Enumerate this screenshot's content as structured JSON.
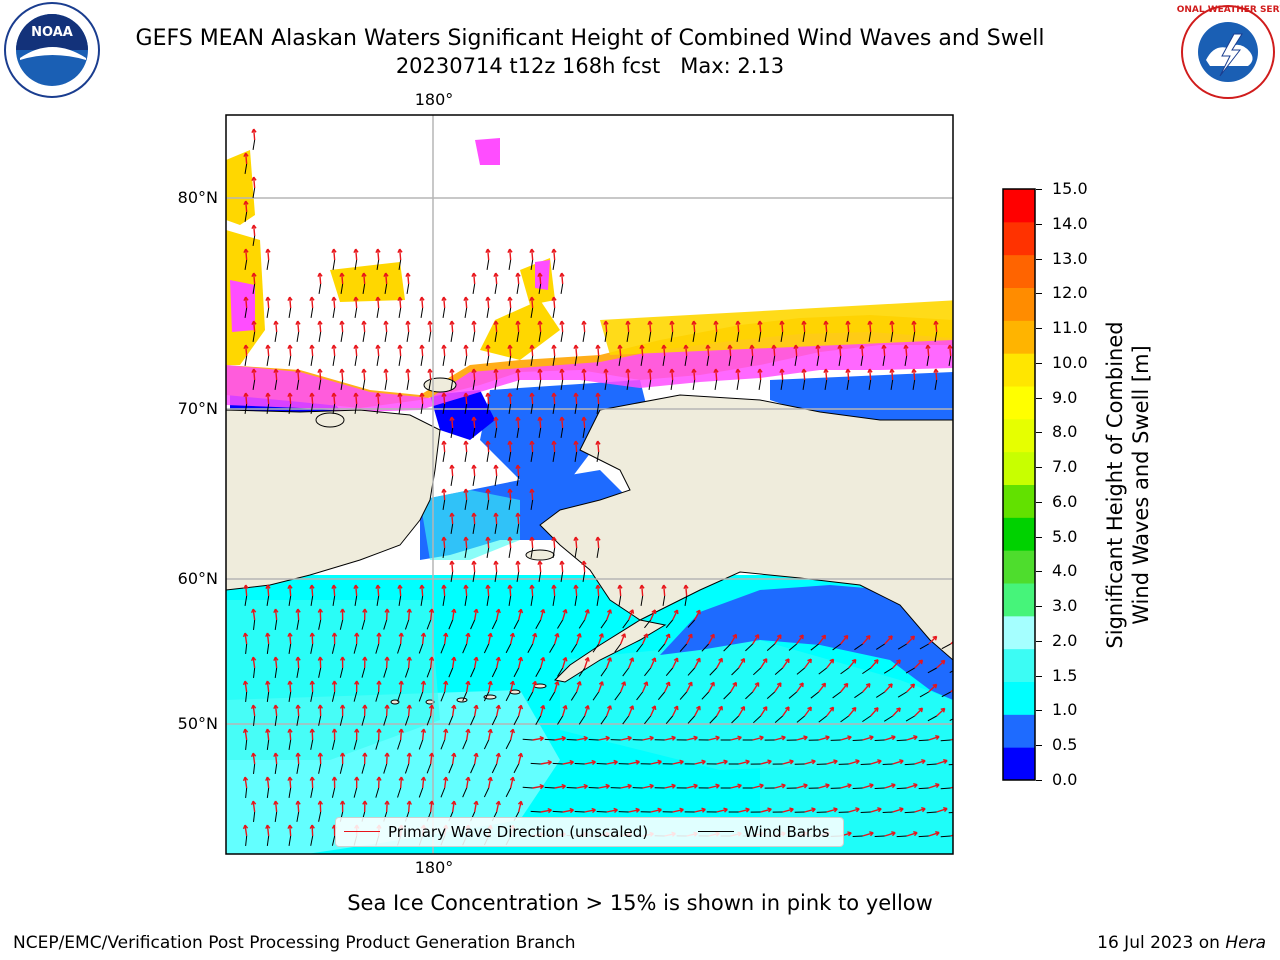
{
  "title": {
    "line1": "GEFS MEAN Alaskan Waters Significant Height of Combined Wind Waves and Swell",
    "line2": "20230714 t12z 168h fcst   Max: 2.13"
  },
  "logos": {
    "left": {
      "icon": "noaa-logo",
      "text": "NOAA"
    },
    "right": {
      "icon": "nws-logo",
      "text": "NATIONAL WEATHER SERVICE"
    }
  },
  "map": {
    "lat_labels": [
      "80°N",
      "70°N",
      "60°N",
      "50°N"
    ],
    "lon_label_top": "180°",
    "lon_label_bottom": "180°",
    "colors": {
      "land": "#efecdc",
      "ice_pink": "#ff4dff",
      "ice_yellow": "#ffd700",
      "ice_orange": "#ffae1a",
      "wave_arrow": "#e8141a",
      "wind_barb": "#000000",
      "grid": "#b5b5b5"
    }
  },
  "legend": {
    "wave_label": "Primary Wave Direction (unscaled)",
    "wind_label": "Wind Barbs"
  },
  "colorbar": {
    "title_line1": "Significant Height of Combined",
    "title_line2": "Wind Waves and Swell [m]",
    "ticks": [
      "15.0",
      "14.0",
      "13.0",
      "12.0",
      "11.0",
      "10.0",
      "9.0",
      "8.0",
      "7.0",
      "6.0",
      "5.0",
      "4.0",
      "3.0",
      "2.0",
      "1.5",
      "1.0",
      "0.5",
      "0.0"
    ],
    "colors_bottom_to_top": [
      "#0000ff",
      "#1e6bff",
      "#00ffff",
      "#3cfcf4",
      "#a5ffff",
      "#46f47a",
      "#4edd2d",
      "#00d200",
      "#62e100",
      "#c8ff00",
      "#e6ff00",
      "#ffff00",
      "#ffe600",
      "#ffb400",
      "#ff8c00",
      "#ff6400",
      "#ff3200",
      "#ff0000"
    ]
  },
  "footnote": "Sea Ice Concentration > 15% is shown in pink to yellow",
  "credit": "NCEP/EMC/Verification Post Processing Product Generation Branch",
  "stamp": {
    "date": "16 Jul 2023 on ",
    "host": "Hera"
  }
}
